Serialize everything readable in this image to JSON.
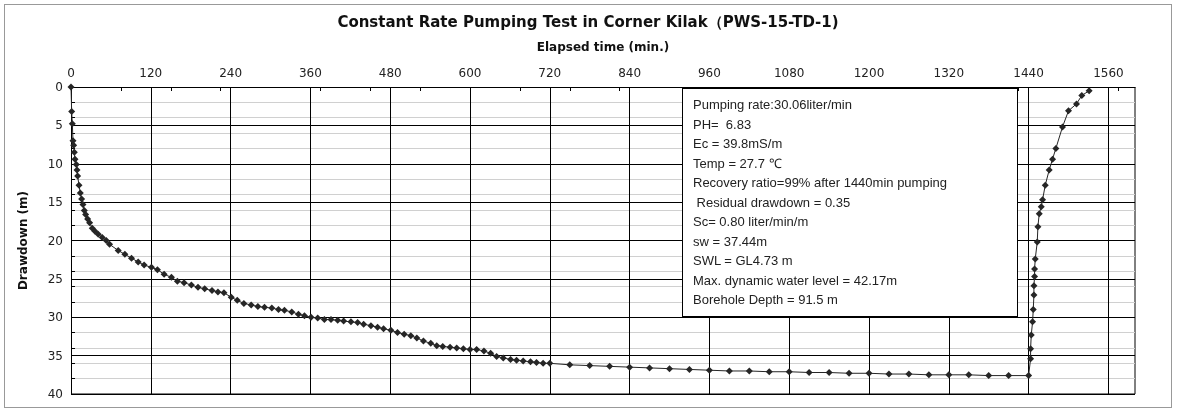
{
  "chart_data": {
    "type": "line",
    "title": "Constant Rate Pumping Test in Corner Kilak（PWS-15-TD-1)",
    "xlabel": "Elapsed time (min.)",
    "ylabel": "Drawdown (m)",
    "xlim": [
      0,
      1600
    ],
    "xticks": [
      0,
      120,
      240,
      360,
      480,
      600,
      720,
      840,
      960,
      1080,
      1200,
      1320,
      1440,
      1560
    ],
    "ylim": [
      40,
      0
    ],
    "yticks": [
      0,
      5,
      10,
      15,
      20,
      25,
      30,
      35,
      40
    ],
    "grid": true,
    "marker": "diamond",
    "line_style": "solid",
    "annotations": [
      "Pumping rate:30.06liter/min",
      "PH=  6.83",
      "Ec = 39.8mS/m",
      "Temp = 27.7 ℃",
      "Recovery ratio=99% after 1440min pumping",
      " Residual drawdown = 0.35",
      "Sc= 0.80 liter/min/m",
      "sw = 37.44m",
      "SWL = GL4.73 m",
      "Max. dynamic water level = 42.17m",
      "Borehole Depth = 91.5 m"
    ],
    "series": [
      {
        "color": "#262626",
        "x": [
          0,
          1,
          2,
          3,
          4,
          5,
          6,
          8,
          9,
          10,
          12,
          14,
          16,
          18,
          20,
          22,
          25,
          28,
          32,
          36,
          41,
          47,
          53,
          58,
          71,
          81,
          91,
          101,
          110,
          121,
          130,
          140,
          151,
          160,
          170,
          181,
          191,
          201,
          212,
          221,
          230,
          241,
          250,
          260,
          271,
          281,
          291,
          302,
          312,
          321,
          332,
          342,
          351,
          361,
          371,
          381,
          391,
          401,
          410,
          421,
          431,
          440,
          451,
          461,
          470,
          481,
          491,
          501,
          511,
          520,
          530,
          541,
          550,
          559,
          570,
          580,
          590,
          600,
          610,
          621,
          631,
          640,
          650,
          661,
          670,
          680,
          691,
          700,
          710,
          720,
          750,
          780,
          810,
          840,
          870,
          900,
          930,
          960,
          990,
          1020,
          1050,
          1080,
          1110,
          1140,
          1170,
          1200,
          1230,
          1260,
          1290,
          1320,
          1350,
          1380,
          1410,
          1440,
          1443,
          1443,
          1444,
          1446,
          1447,
          1448,
          1448,
          1449,
          1449,
          1450,
          1453,
          1454,
          1456,
          1459,
          1461,
          1465,
          1471,
          1476,
          1481,
          1491,
          1500,
          1512,
          1520,
          1531
        ],
        "values": [
          0,
          3.2,
          4.8,
          7.0,
          7.6,
          8.5,
          9.4,
          10.1,
          10.8,
          11.6,
          12.8,
          13.8,
          14.6,
          15.3,
          16.1,
          16.6,
          17.2,
          17.7,
          18.4,
          18.8,
          19.2,
          19.6,
          20.0,
          20.5,
          21.3,
          21.8,
          22.3,
          22.8,
          23.2,
          23.5,
          23.8,
          24.4,
          24.8,
          25.3,
          25.5,
          25.8,
          26.1,
          26.3,
          26.5,
          26.7,
          26.8,
          27.4,
          27.8,
          28.2,
          28.4,
          28.6,
          28.7,
          28.8,
          29.0,
          29.1,
          29.3,
          29.6,
          29.8,
          30.0,
          30.1,
          30.3,
          30.3,
          30.4,
          30.5,
          30.6,
          30.7,
          30.9,
          31.1,
          31.3,
          31.5,
          31.7,
          32.0,
          32.2,
          32.4,
          32.7,
          33.1,
          33.4,
          33.7,
          33.8,
          33.9,
          34.0,
          34.1,
          34.2,
          34.2,
          34.4,
          34.7,
          35.1,
          35.3,
          35.5,
          35.6,
          35.7,
          35.8,
          35.9,
          36.0,
          36.0,
          36.2,
          36.3,
          36.4,
          36.5,
          36.6,
          36.7,
          36.8,
          36.9,
          37.0,
          37.0,
          37.1,
          37.1,
          37.2,
          37.2,
          37.3,
          37.3,
          37.4,
          37.4,
          37.5,
          37.5,
          37.5,
          37.6,
          37.6,
          37.6,
          35.4,
          34.1,
          32.3,
          30.6,
          29.0,
          27.1,
          25.9,
          24.7,
          23.7,
          22.4,
          20.2,
          18.2,
          16.5,
          15.6,
          14.7,
          12.8,
          10.8,
          9.4,
          8.0,
          5.2,
          3.1,
          2.2,
          1.1,
          0.5
        ]
      }
    ]
  }
}
